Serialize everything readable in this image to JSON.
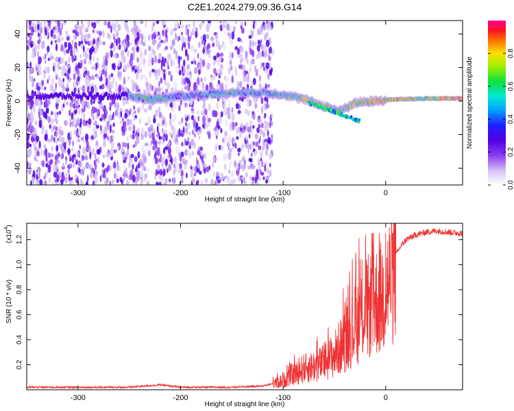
{
  "title": "C2E1.2024.279.09.36.G14",
  "colors": {
    "snr_line": "#ee3333",
    "ridge_start": "#1e33ff",
    "speckle_dark": "#5a00d8",
    "speckle_light": "#d8c8f4"
  },
  "chart_data": [
    {
      "type": "heatmap",
      "xlabel": "Height of straight line (km)",
      "ylabel": "Frequency (Hz)",
      "xlim": [
        -350,
        75
      ],
      "ylim": [
        -50,
        48
      ],
      "x_ticks": [
        -300,
        -200,
        -100,
        0
      ],
      "y_ticks": [
        -40,
        -20,
        0,
        20,
        40
      ],
      "x_tick_labels": [
        "-300",
        "-200",
        "-100",
        "0"
      ],
      "y_tick_labels": [
        "-40",
        "-20",
        "0",
        "20",
        "40"
      ],
      "colorbar": {
        "label": "Normalized spectral amplitude",
        "range": [
          0,
          1
        ],
        "ticks": [
          0.0,
          0.2,
          0.4,
          0.6,
          0.8
        ],
        "tick_labels": [
          "0.0",
          "0.2",
          "0.4",
          "0.6",
          "0.8"
        ],
        "colormap": "rainbow (lavender-violet-blue-cyan-green-yellow-red-magenta)"
      },
      "noise_region_x": [
        -350,
        -110
      ],
      "signal_ridge": [
        {
          "x": -250,
          "freq": 3,
          "amp": 0.35
        },
        {
          "x": -230,
          "freq": 1,
          "amp": 0.45
        },
        {
          "x": -200,
          "freq": 3,
          "amp": 0.3
        },
        {
          "x": -150,
          "freq": 5,
          "amp": 0.45
        },
        {
          "x": -120,
          "freq": 5,
          "amp": 0.35
        },
        {
          "x": -100,
          "freq": 4,
          "amp": 0.5
        },
        {
          "x": -80,
          "freq": 1,
          "amp": 0.6
        },
        {
          "x": -60,
          "freq": -3,
          "amp": 0.55
        },
        {
          "x": -45,
          "freq": -6,
          "amp": 0.5
        },
        {
          "x": -30,
          "freq": -1,
          "amp": 0.6
        },
        {
          "x": -10,
          "freq": 0,
          "amp": 0.75
        },
        {
          "x": 10,
          "freq": 1,
          "amp": 0.7
        },
        {
          "x": 40,
          "freq": 1.5,
          "amp": 0.6
        },
        {
          "x": 75,
          "freq": 1.5,
          "amp": 0.85
        }
      ]
    },
    {
      "type": "line",
      "xlabel": "Height of straight line (km)",
      "ylabel": "SNR (10 * v/v)",
      "y_scale_label": "(x10",
      "y_scale_exponent": "4",
      "y_scale_suffix": ")",
      "xlim": [
        -350,
        75
      ],
      "ylim": [
        0,
        1.33
      ],
      "x_ticks": [
        -300,
        -200,
        -100,
        0
      ],
      "y_ticks": [
        0.2,
        0.4,
        0.6,
        0.8,
        1.0,
        1.2
      ],
      "x_tick_labels": [
        "-300",
        "-200",
        "-100",
        "0"
      ],
      "y_tick_labels": [
        "0.2",
        "0.4",
        "0.6",
        "0.8",
        "1.0",
        "1.2"
      ],
      "series": [
        {
          "x": [
            -350,
            -300,
            -250,
            -220,
            -200,
            -150,
            -120,
            -110,
            -100,
            -90,
            -80,
            -70,
            -60,
            -50,
            -40,
            -30,
            -25,
            -20,
            -15,
            -10,
            -5,
            0,
            5,
            10,
            15,
            20,
            30,
            40,
            50,
            60,
            75
          ],
          "y": [
            0.02,
            0.02,
            0.02,
            0.04,
            0.02,
            0.02,
            0.03,
            0.05,
            0.08,
            0.13,
            0.18,
            0.2,
            0.23,
            0.3,
            0.42,
            0.55,
            0.62,
            0.68,
            0.72,
            0.75,
            0.77,
            0.85,
            0.95,
            1.08,
            1.15,
            1.2,
            1.24,
            1.26,
            1.27,
            1.26,
            1.25
          ]
        }
      ]
    }
  ]
}
